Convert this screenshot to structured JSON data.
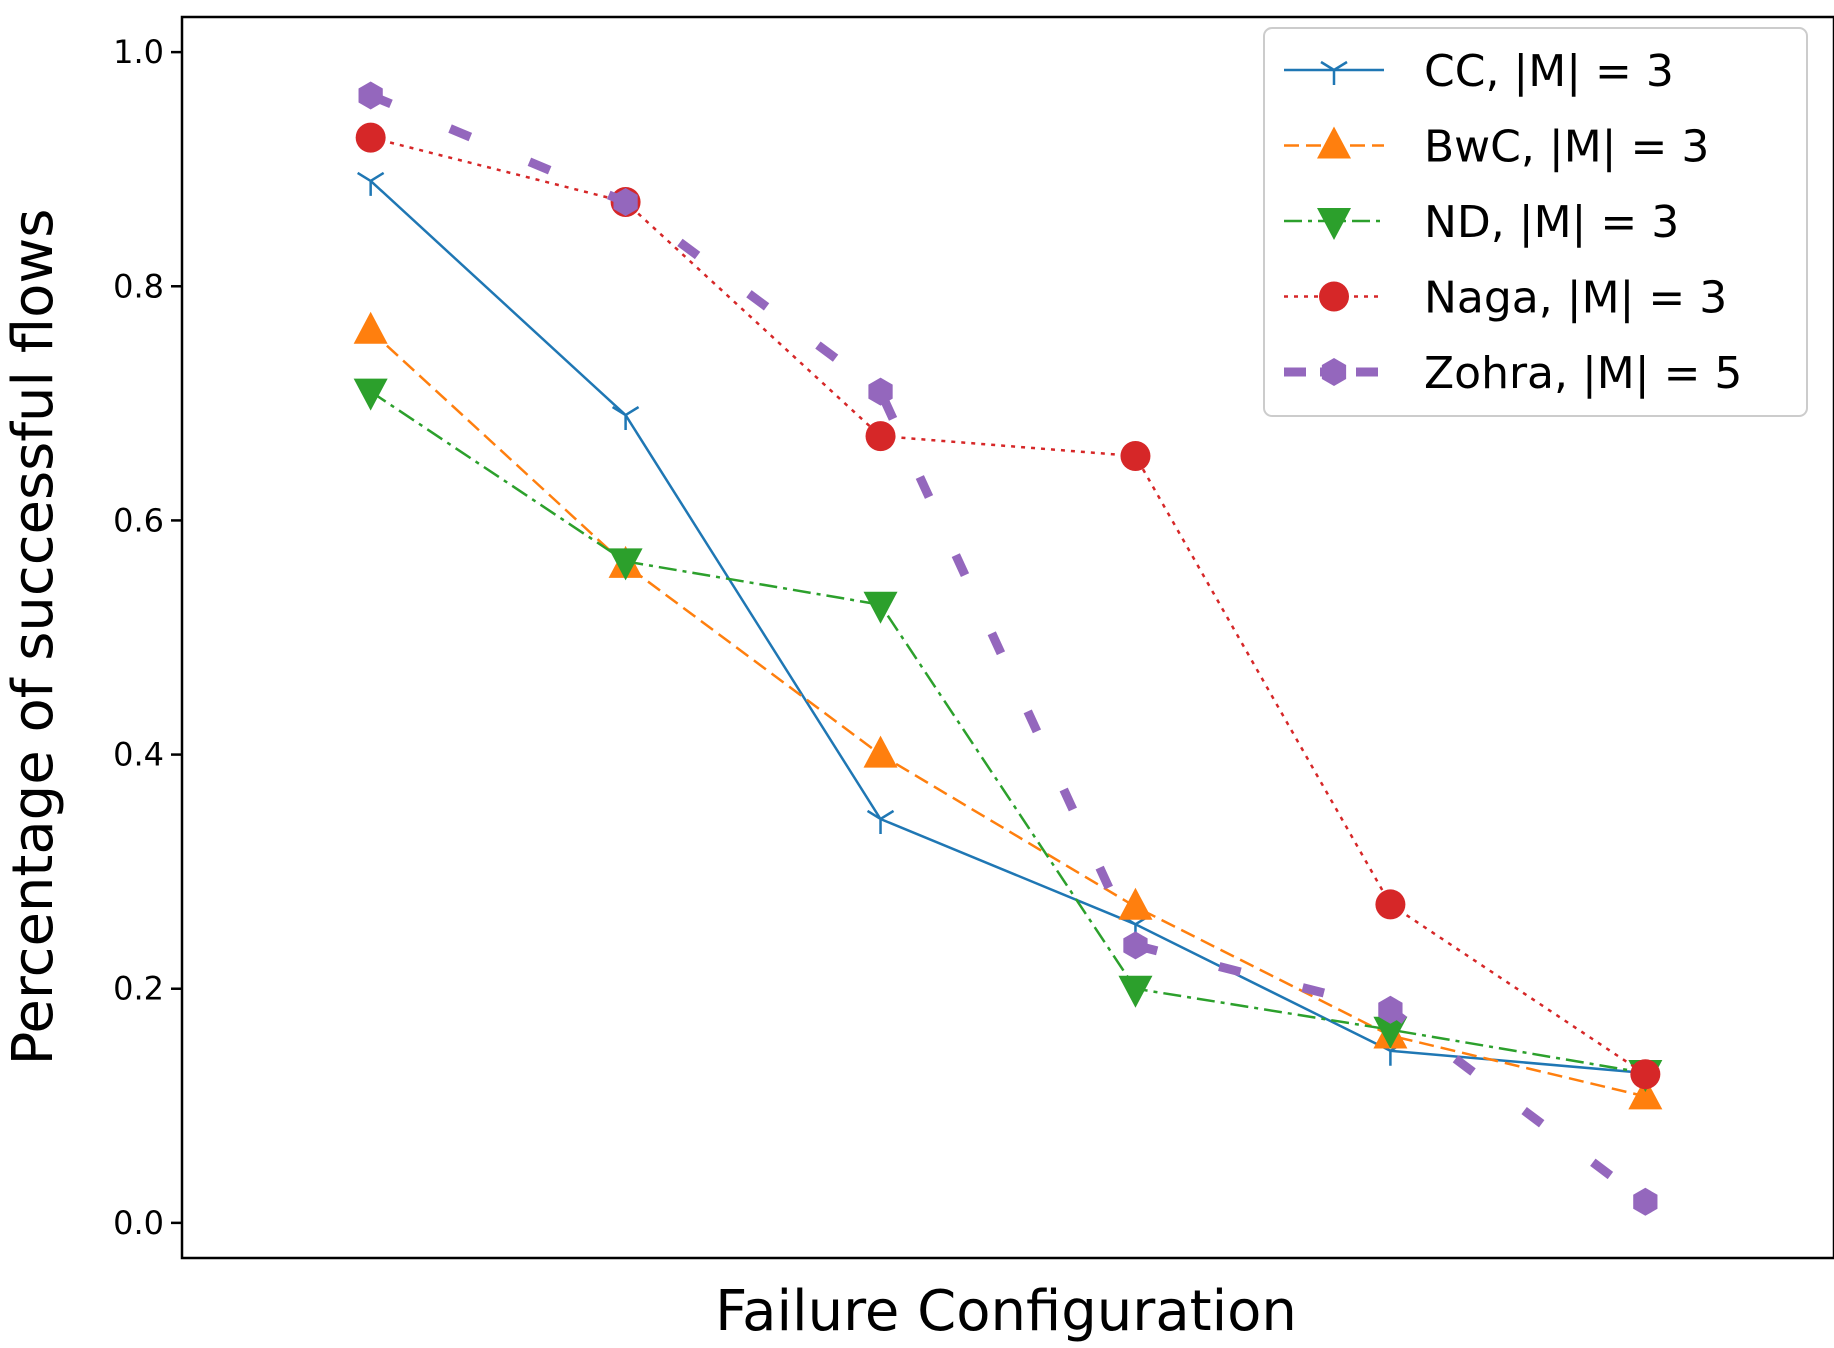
{
  "chart_data": {
    "type": "line",
    "title": "",
    "xlabel": "Failure Configuration",
    "ylabel": "Percentage of successful flows",
    "x": [
      1,
      2,
      3,
      4,
      5,
      6
    ],
    "xlim": [
      0.26,
      6.74
    ],
    "ylim": [
      -0.03,
      1.03
    ],
    "yticks": [
      0.0,
      0.2,
      0.4,
      0.6,
      0.8,
      1.0
    ],
    "ytick_labels": [
      "0.0",
      "0.2",
      "0.4",
      "0.6",
      "0.8",
      "1.0"
    ],
    "grid": false,
    "legend_position": "top-right",
    "series": [
      {
        "name": "CC, |M| = 3",
        "values": [
          0.89,
          0.69,
          0.345,
          0.255,
          0.147,
          0.128
        ],
        "color": "#1f77b4",
        "line": "solid",
        "marker": "tri_down"
      },
      {
        "name": "BwC, |M| = 3",
        "values": [
          0.762,
          0.562,
          0.4,
          0.27,
          0.16,
          0.108
        ],
        "color": "#ff7f0e",
        "line": "dashed",
        "marker": "triangle_up"
      },
      {
        "name": "ND, |M| = 3",
        "values": [
          0.71,
          0.565,
          0.528,
          0.2,
          0.165,
          0.128
        ],
        "color": "#2ca02c",
        "line": "dashdot",
        "marker": "triangle_down"
      },
      {
        "name": "Naga, |M| = 3",
        "values": [
          0.927,
          0.872,
          0.672,
          0.655,
          0.272,
          0.127
        ],
        "color": "#d62728",
        "line": "dotted",
        "marker": "circle"
      },
      {
        "name": "Zohra, |M| = 5",
        "values": [
          0.963,
          0.872,
          0.71,
          0.237,
          0.182,
          0.018
        ],
        "color": "#9467bd",
        "line": "longdash",
        "marker": "hexagon"
      }
    ]
  }
}
